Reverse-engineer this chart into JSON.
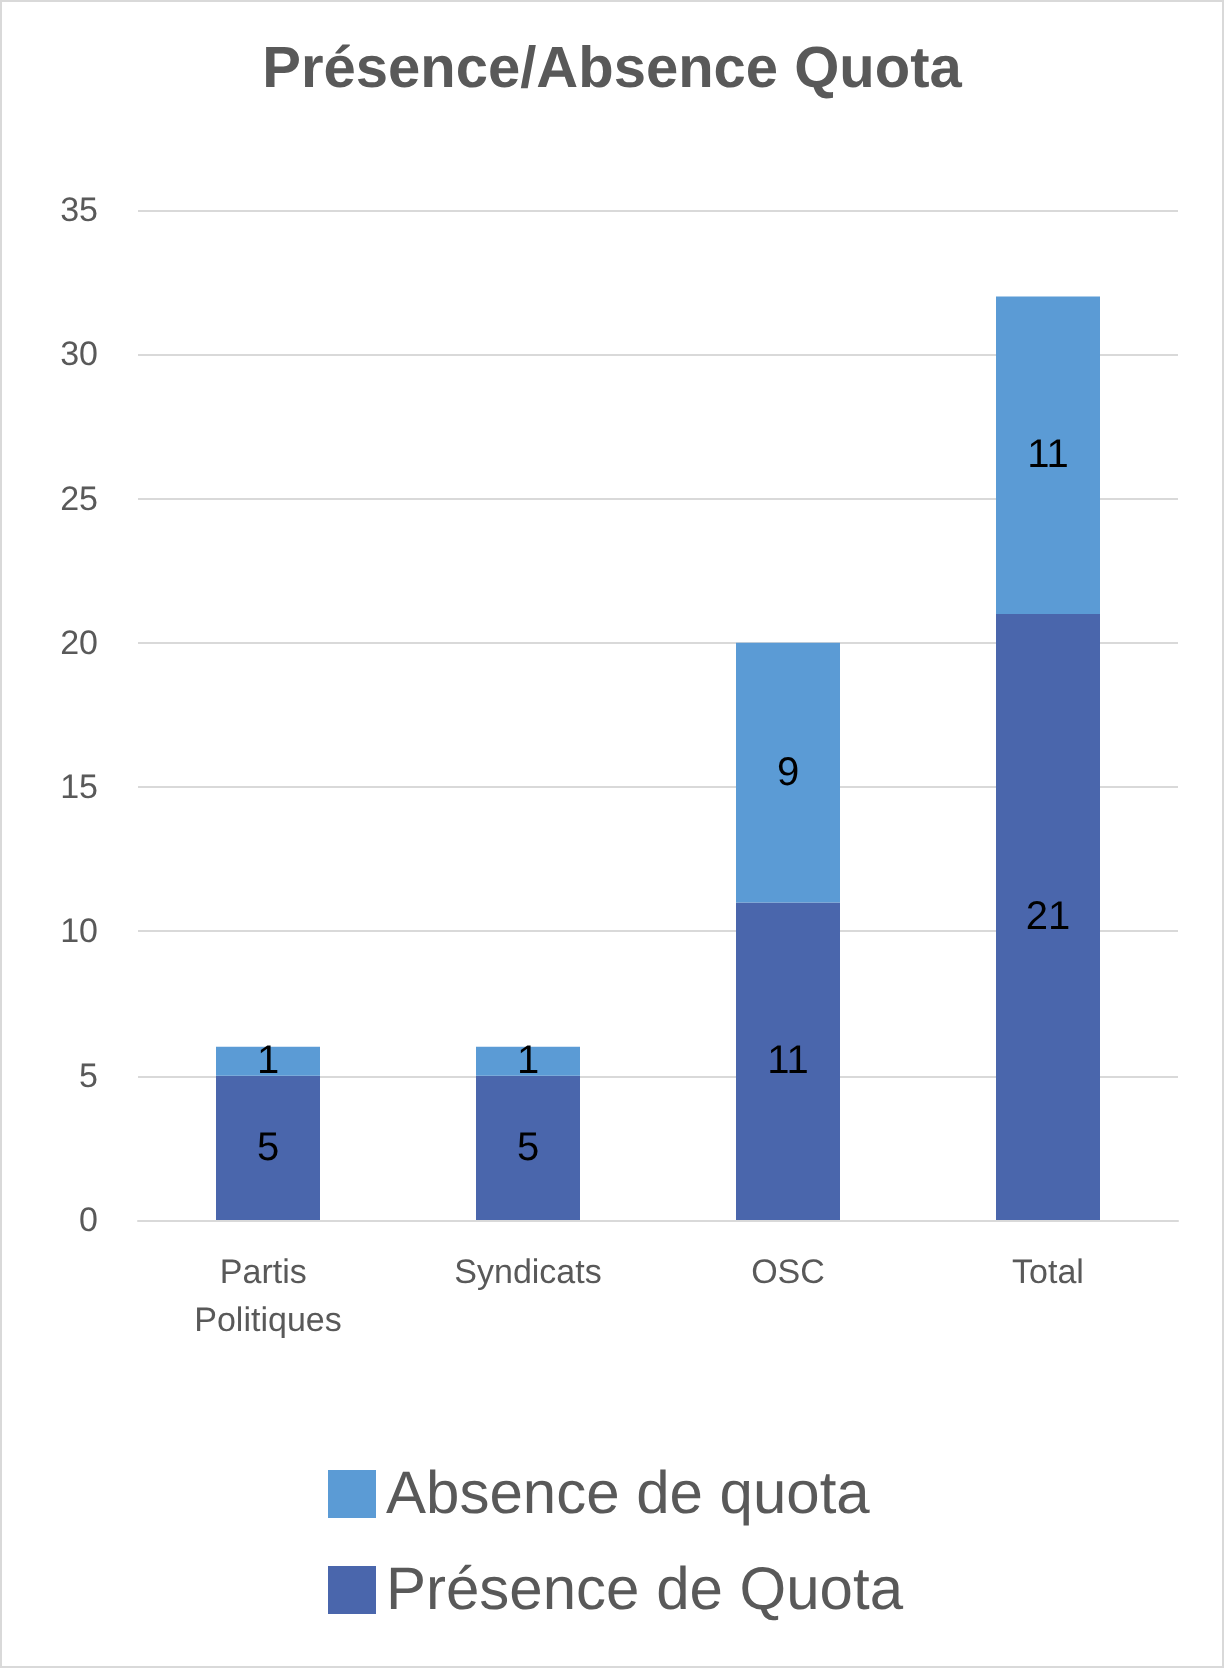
{
  "chart_data": {
    "type": "bar",
    "title": "Présence/Absence Quota",
    "categories": [
      "Partis Politiques",
      "Syndicats",
      "OSC",
      "Total"
    ],
    "series": [
      {
        "name": "Présence de Quota",
        "color": "#4a66ac",
        "values": [
          5,
          5,
          11,
          21
        ]
      },
      {
        "name": "Absence de quota",
        "color": "#5b9bd5",
        "values": [
          1,
          1,
          9,
          11
        ]
      }
    ],
    "stacked": true,
    "ylim": [
      0,
      35
    ],
    "yticks": [
      0,
      5,
      10,
      15,
      20,
      25,
      30,
      35
    ],
    "grid": "y",
    "legend": "bottom",
    "data_labels": true
  }
}
